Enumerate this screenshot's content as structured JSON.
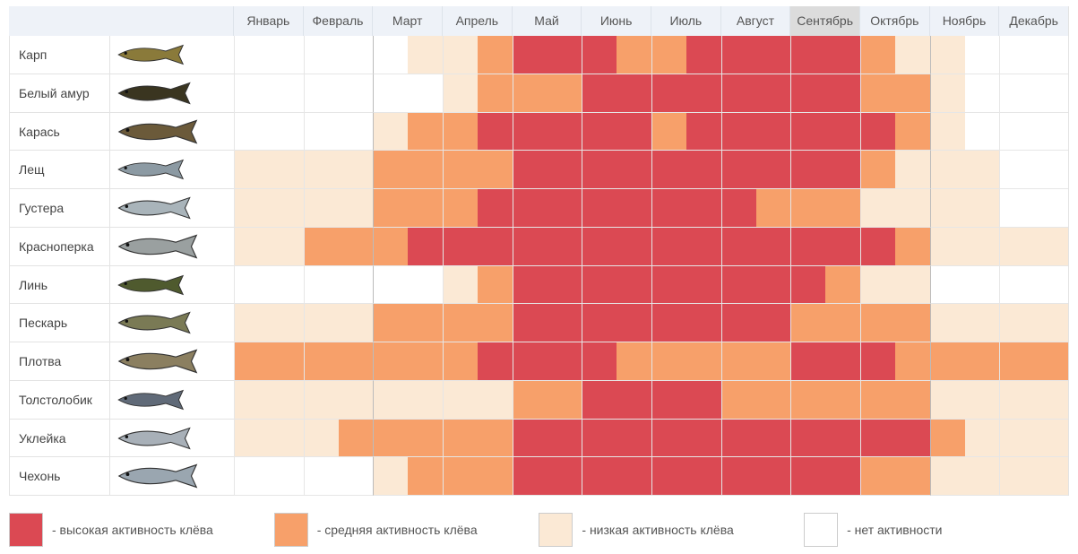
{
  "table": {
    "months": [
      "Январь",
      "Февраль",
      "Март",
      "Апрель",
      "Май",
      "Июнь",
      "Июль",
      "Август",
      "Сентябрь",
      "Октябрь",
      "Ноябрь",
      "Декабрь"
    ],
    "current_month": 8,
    "rows": [
      {
        "name": "Карп",
        "activity": [
          0,
          0,
          0,
          0,
          0,
          1,
          1,
          2,
          3,
          3,
          3,
          2,
          2,
          3,
          3,
          3,
          3,
          3,
          2,
          1,
          1,
          0,
          0,
          0
        ]
      },
      {
        "name": "Белый амур",
        "activity": [
          0,
          0,
          0,
          0,
          0,
          0,
          1,
          2,
          2,
          2,
          3,
          3,
          3,
          3,
          3,
          3,
          3,
          3,
          2,
          2,
          1,
          0,
          0,
          0
        ]
      },
      {
        "name": "Карась",
        "activity": [
          0,
          0,
          0,
          0,
          1,
          2,
          2,
          3,
          3,
          3,
          3,
          3,
          2,
          3,
          3,
          3,
          3,
          3,
          3,
          2,
          1,
          0,
          0,
          0
        ]
      },
      {
        "name": "Лещ",
        "activity": [
          1,
          1,
          1,
          1,
          2,
          2,
          2,
          2,
          3,
          3,
          3,
          3,
          3,
          3,
          3,
          3,
          3,
          3,
          2,
          1,
          1,
          1,
          0,
          0
        ]
      },
      {
        "name": "Густера",
        "activity": [
          1,
          1,
          1,
          1,
          2,
          2,
          2,
          3,
          3,
          3,
          3,
          3,
          3,
          3,
          3,
          2,
          2,
          2,
          1,
          1,
          1,
          1,
          0,
          0
        ]
      },
      {
        "name": "Красноперка",
        "activity": [
          1,
          1,
          2,
          2,
          2,
          3,
          3,
          3,
          3,
          3,
          3,
          3,
          3,
          3,
          3,
          3,
          3,
          3,
          3,
          2,
          1,
          1,
          1,
          1
        ]
      },
      {
        "name": "Линь",
        "activity": [
          0,
          0,
          0,
          0,
          0,
          0,
          1,
          2,
          3,
          3,
          3,
          3,
          3,
          3,
          3,
          3,
          3,
          2,
          1,
          1,
          0,
          0,
          0,
          0
        ]
      },
      {
        "name": "Пескарь",
        "activity": [
          1,
          1,
          1,
          1,
          2,
          2,
          2,
          2,
          3,
          3,
          3,
          3,
          3,
          3,
          3,
          3,
          2,
          2,
          2,
          2,
          1,
          1,
          1,
          1
        ]
      },
      {
        "name": "Плотва",
        "activity": [
          2,
          2,
          2,
          2,
          2,
          2,
          2,
          3,
          3,
          3,
          3,
          2,
          2,
          2,
          2,
          2,
          3,
          3,
          3,
          2,
          2,
          2,
          2,
          2
        ]
      },
      {
        "name": "Толстолобик",
        "activity": [
          1,
          1,
          1,
          1,
          1,
          1,
          1,
          1,
          2,
          2,
          3,
          3,
          3,
          3,
          2,
          2,
          2,
          2,
          2,
          2,
          1,
          1,
          1,
          1
        ]
      },
      {
        "name": "Уклейка",
        "activity": [
          1,
          1,
          1,
          2,
          2,
          2,
          2,
          2,
          3,
          3,
          3,
          3,
          3,
          3,
          3,
          3,
          3,
          3,
          3,
          3,
          2,
          1,
          1,
          1
        ]
      },
      {
        "name": "Чехонь",
        "activity": [
          0,
          0,
          0,
          0,
          1,
          2,
          2,
          2,
          3,
          3,
          3,
          3,
          3,
          3,
          3,
          3,
          3,
          3,
          2,
          2,
          1,
          1,
          1,
          1
        ]
      }
    ]
  },
  "legend": [
    {
      "label": "- высокая активность клёва",
      "color": "#db4953"
    },
    {
      "label": "- средняя активность клёва",
      "color": "#f7a06a"
    },
    {
      "label": "- низкая активность клёва",
      "color": "#fbe9d5"
    },
    {
      "label": "- нет активности",
      "color": "#ffffff"
    }
  ]
}
